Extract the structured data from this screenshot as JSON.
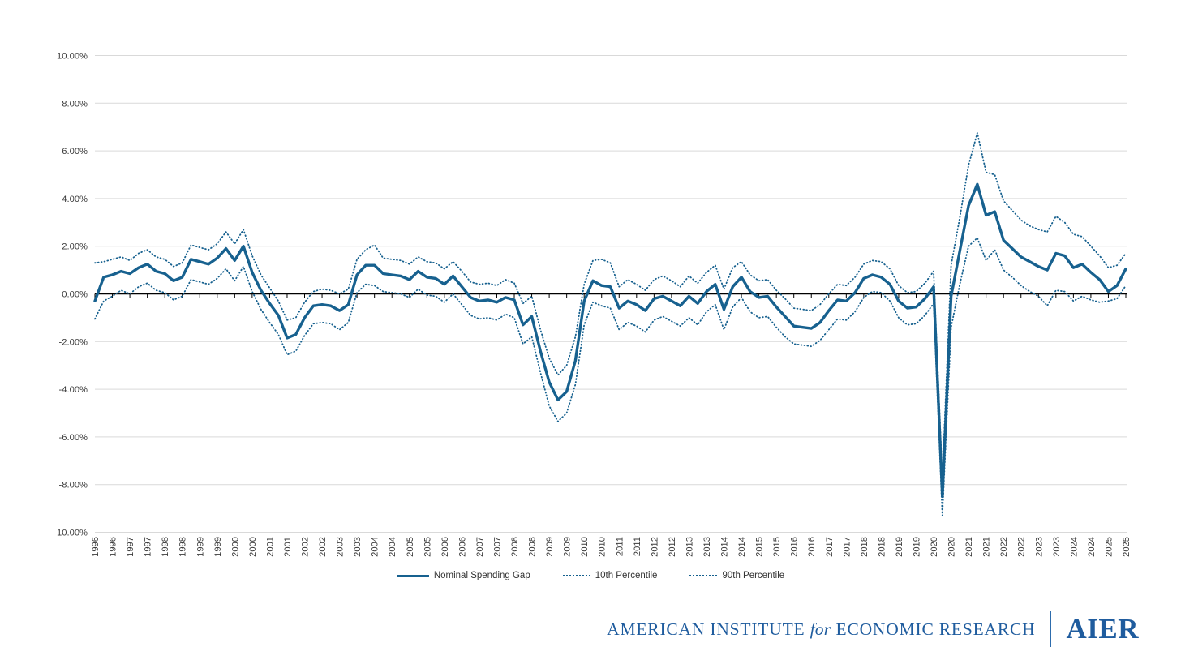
{
  "page": {
    "background": "#ffffff"
  },
  "chart_data": {
    "type": "line",
    "title": "",
    "x_unit": "quarterly",
    "x_start": "1996Q1",
    "x_end": "2025Q3",
    "points_per_label": 2,
    "x_tick_labels": [
      "1996",
      "1996",
      "1997",
      "1997",
      "1998",
      "1998",
      "1999",
      "1999",
      "2000",
      "2000",
      "2001",
      "2001",
      "2002",
      "2002",
      "2003",
      "2003",
      "2004",
      "2004",
      "2005",
      "2005",
      "2006",
      "2006",
      "2007",
      "2007",
      "2008",
      "2008",
      "2009",
      "2009",
      "2010",
      "2010",
      "2011",
      "2011",
      "2012",
      "2012",
      "2013",
      "2013",
      "2014",
      "2014",
      "2015",
      "2015",
      "2016",
      "2016",
      "2017",
      "2017",
      "2018",
      "2018",
      "2019",
      "2019",
      "2020",
      "2020",
      "2021",
      "2021",
      "2022",
      "2022",
      "2023",
      "2023",
      "2024",
      "2024",
      "2025",
      "2025"
    ],
    "y_tick_labels": [
      "10.00%",
      "8.00%",
      "6.00%",
      "4.00%",
      "2.00%",
      "0.00%",
      "-2.00%",
      "-4.00%",
      "-6.00%",
      "-8.00%",
      "-10.00%"
    ],
    "y_grid_values": [
      10,
      8,
      6,
      4,
      2,
      0,
      -2,
      -4,
      -6,
      -8,
      -10
    ],
    "ylim": [
      -10,
      10
    ],
    "grid": true,
    "legend_position": "bottom",
    "line_color": "#17618F",
    "series": [
      {
        "name": "Nominal Spending Gap",
        "style": "solid",
        "values": [
          -0.3,
          0.7,
          0.8,
          0.95,
          0.85,
          1.1,
          1.25,
          0.95,
          0.85,
          0.55,
          0.7,
          1.45,
          1.35,
          1.25,
          1.5,
          1.9,
          1.4,
          2.0,
          0.9,
          0.15,
          -0.4,
          -0.9,
          -1.85,
          -1.7,
          -1.0,
          -0.5,
          -0.45,
          -0.5,
          -0.7,
          -0.45,
          0.8,
          1.2,
          1.2,
          0.85,
          0.8,
          0.75,
          0.6,
          0.95,
          0.7,
          0.65,
          0.4,
          0.75,
          0.3,
          -0.15,
          -0.3,
          -0.25,
          -0.35,
          -0.15,
          -0.25,
          -1.3,
          -0.95,
          -2.4,
          -3.7,
          -4.45,
          -4.1,
          -2.8,
          -0.3,
          0.55,
          0.35,
          0.3,
          -0.6,
          -0.3,
          -0.45,
          -0.7,
          -0.2,
          -0.1,
          -0.3,
          -0.5,
          -0.1,
          -0.4,
          0.1,
          0.4,
          -0.65,
          0.3,
          0.7,
          0.1,
          -0.15,
          -0.1,
          -0.55,
          -0.95,
          -1.35,
          -1.4,
          -1.45,
          -1.2,
          -0.7,
          -0.25,
          -0.3,
          0.05,
          0.65,
          0.8,
          0.7,
          0.4,
          -0.3,
          -0.6,
          -0.55,
          -0.2,
          0.3,
          -8.5,
          -0.1,
          1.8,
          3.7,
          4.6,
          3.3,
          3.45,
          2.25,
          1.9,
          1.55,
          1.35,
          1.15,
          1.0,
          1.7,
          1.6,
          1.1,
          1.25,
          0.9,
          0.6,
          0.1,
          0.35,
          1.05
        ]
      },
      {
        "name": "10th Percentile",
        "style": "dotted",
        "values": [
          -1.05,
          -0.3,
          -0.1,
          0.15,
          0.0,
          0.3,
          0.45,
          0.15,
          0.05,
          -0.25,
          -0.1,
          0.6,
          0.5,
          0.4,
          0.65,
          1.05,
          0.55,
          1.15,
          0.1,
          -0.65,
          -1.2,
          -1.7,
          -2.55,
          -2.4,
          -1.75,
          -1.25,
          -1.2,
          -1.25,
          -1.5,
          -1.2,
          0.05,
          0.4,
          0.35,
          0.1,
          0.05,
          0.0,
          -0.15,
          0.2,
          -0.05,
          -0.1,
          -0.35,
          0.0,
          -0.45,
          -0.9,
          -1.05,
          -1.0,
          -1.1,
          -0.85,
          -1.0,
          -2.1,
          -1.8,
          -3.3,
          -4.7,
          -5.35,
          -5.0,
          -3.8,
          -1.3,
          -0.35,
          -0.5,
          -0.6,
          -1.5,
          -1.2,
          -1.35,
          -1.6,
          -1.1,
          -0.95,
          -1.15,
          -1.35,
          -1.0,
          -1.3,
          -0.75,
          -0.45,
          -1.5,
          -0.55,
          -0.15,
          -0.75,
          -1.0,
          -0.95,
          -1.4,
          -1.8,
          -2.1,
          -2.15,
          -2.2,
          -1.95,
          -1.5,
          -1.05,
          -1.1,
          -0.75,
          -0.15,
          0.1,
          0.05,
          -0.3,
          -1.0,
          -1.3,
          -1.25,
          -0.9,
          -0.4,
          -9.3,
          -1.4,
          0.4,
          2.0,
          2.35,
          1.4,
          1.85,
          1.0,
          0.7,
          0.35,
          0.1,
          -0.1,
          -0.5,
          0.15,
          0.1,
          -0.3,
          -0.1,
          -0.25,
          -0.35,
          -0.3,
          -0.2,
          0.35
        ]
      },
      {
        "name": "90th Percentile",
        "style": "dotted",
        "values": [
          1.3,
          1.35,
          1.45,
          1.55,
          1.4,
          1.7,
          1.85,
          1.55,
          1.45,
          1.15,
          1.3,
          2.05,
          1.95,
          1.85,
          2.1,
          2.6,
          2.1,
          2.7,
          1.6,
          0.8,
          0.25,
          -0.3,
          -1.1,
          -1.0,
          -0.35,
          0.1,
          0.2,
          0.15,
          0.0,
          0.2,
          1.45,
          1.85,
          2.05,
          1.5,
          1.45,
          1.4,
          1.25,
          1.55,
          1.35,
          1.3,
          1.05,
          1.35,
          0.95,
          0.5,
          0.4,
          0.45,
          0.35,
          0.6,
          0.45,
          -0.4,
          -0.1,
          -1.5,
          -2.7,
          -3.4,
          -3.0,
          -1.8,
          0.4,
          1.4,
          1.45,
          1.3,
          0.3,
          0.6,
          0.4,
          0.15,
          0.6,
          0.75,
          0.55,
          0.3,
          0.75,
          0.45,
          0.9,
          1.2,
          0.2,
          1.1,
          1.35,
          0.8,
          0.55,
          0.6,
          0.15,
          -0.2,
          -0.6,
          -0.65,
          -0.7,
          -0.45,
          0.0,
          0.4,
          0.35,
          0.7,
          1.25,
          1.4,
          1.35,
          1.05,
          0.35,
          0.05,
          0.1,
          0.45,
          0.95,
          -7.7,
          1.2,
          3.2,
          5.4,
          6.75,
          5.1,
          5.0,
          3.9,
          3.5,
          3.1,
          2.85,
          2.7,
          2.6,
          3.25,
          3.0,
          2.5,
          2.4,
          2.0,
          1.6,
          1.1,
          1.2,
          1.7
        ]
      }
    ]
  },
  "footer": {
    "brand_line_part1": "AMERICAN INSTITUTE",
    "brand_line_part2": "for",
    "brand_line_part3": "ECONOMIC RESEARCH",
    "logo_text": "AIER",
    "brand_color": "#1F5C9E"
  }
}
